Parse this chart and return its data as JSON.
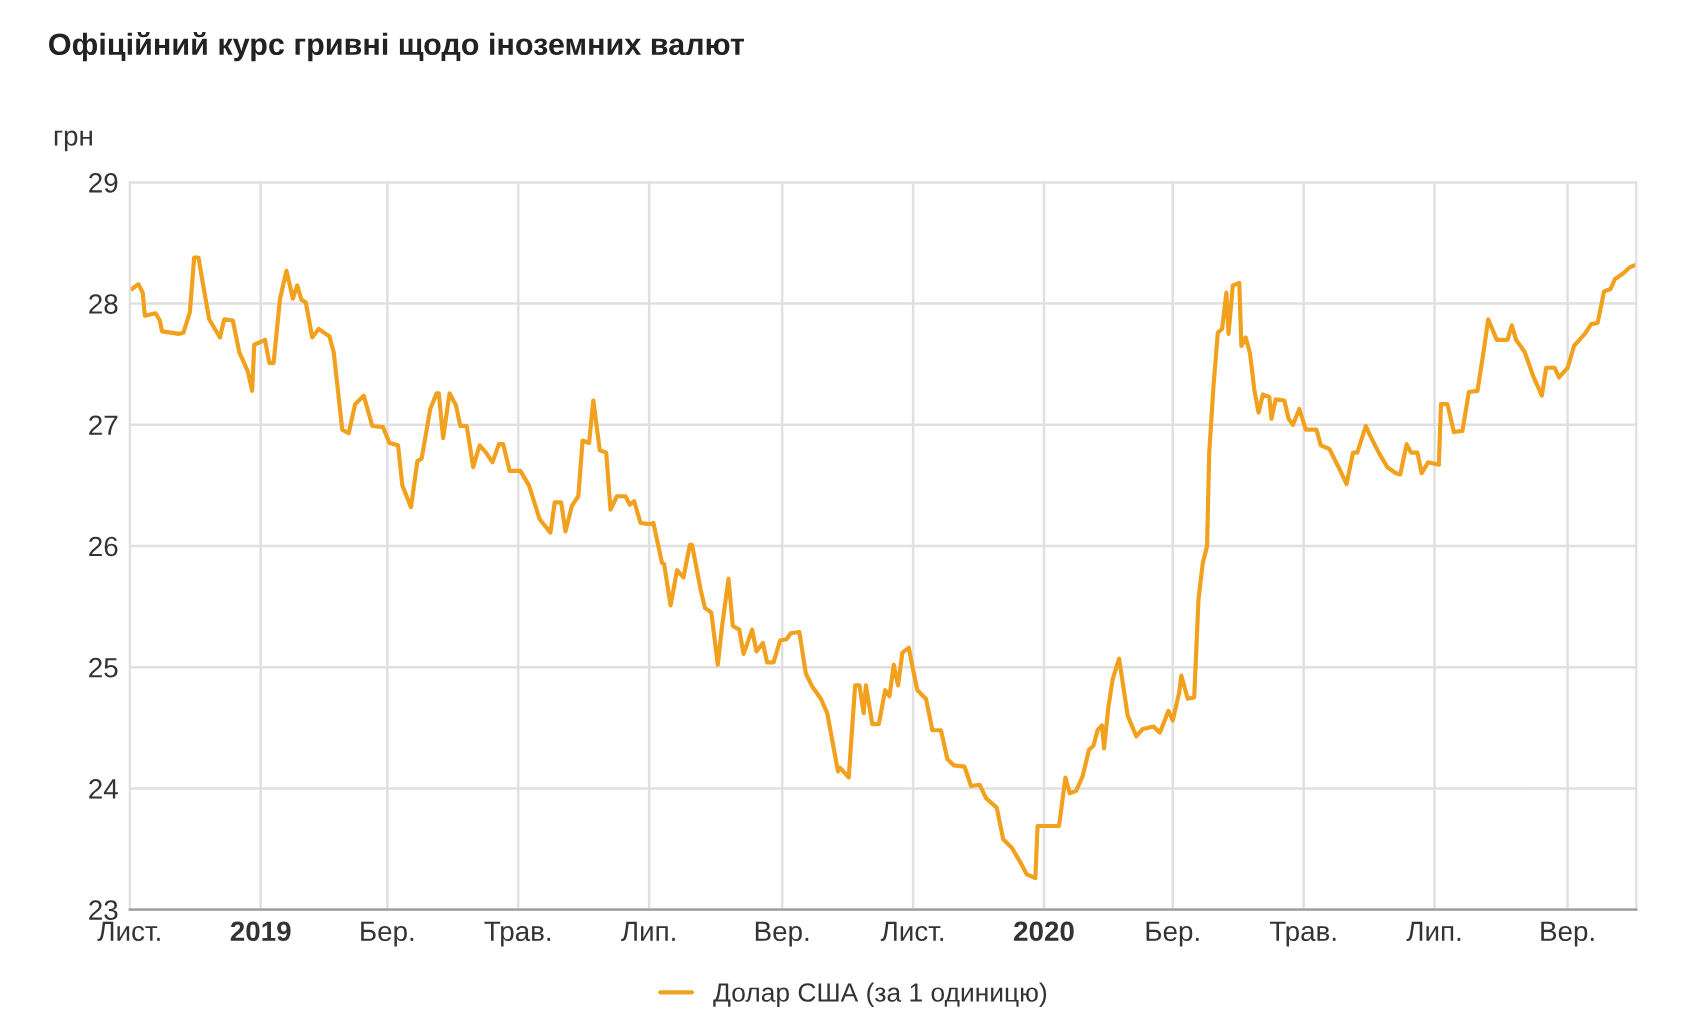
{
  "chart_data": {
    "type": "line",
    "title": "Офіційний курс гривні щодо іноземних валют",
    "ylabel": "грн",
    "xlim": [
      "2018-11-01",
      "2020-10-03"
    ],
    "xticks": [
      {
        "value": "2018-11-01",
        "label": "Лист."
      },
      {
        "value": "2019-01-01",
        "label": "2019"
      },
      {
        "value": "2019-03-01",
        "label": "Бер."
      },
      {
        "value": "2019-05-01",
        "label": "Трав."
      },
      {
        "value": "2019-07-01",
        "label": "Лип."
      },
      {
        "value": "2019-09-01",
        "label": "Вер."
      },
      {
        "value": "2019-11-01",
        "label": "Лист."
      },
      {
        "value": "2020-01-01",
        "label": "2020"
      },
      {
        "value": "2020-03-01",
        "label": "Бер."
      },
      {
        "value": "2020-05-01",
        "label": "Трав."
      },
      {
        "value": "2020-07-01",
        "label": "Лип."
      },
      {
        "value": "2020-09-01",
        "label": "Вер."
      }
    ],
    "ylim": [
      23,
      29
    ],
    "yticks": [
      23,
      24,
      25,
      26,
      27,
      28,
      29
    ],
    "grid": true,
    "legend": "bottom",
    "marker": "none",
    "line_style": "solid",
    "series": [
      {
        "name": "Долар США (за 1 одиницю)",
        "color": "#f2a11f",
        "x": [
          "2018-11-02",
          "2018-11-05",
          "2018-11-07",
          "2018-11-08",
          "2018-11-13",
          "2018-11-15",
          "2018-11-16",
          "2018-11-24",
          "2018-11-26",
          "2018-11-29",
          "2018-12-01",
          "2018-12-03",
          "2018-12-05",
          "2018-12-08",
          "2018-12-13",
          "2018-12-15",
          "2018-12-19",
          "2018-12-22",
          "2018-12-26",
          "2018-12-28",
          "2018-12-29",
          "2019-01-03",
          "2019-01-05",
          "2019-01-07",
          "2019-01-10",
          "2019-01-13",
          "2019-01-16",
          "2019-01-18",
          "2019-01-20",
          "2019-01-22",
          "2019-01-25",
          "2019-01-28",
          "2019-02-02",
          "2019-02-04",
          "2019-02-08",
          "2019-02-11",
          "2019-02-14",
          "2019-02-18",
          "2019-02-22",
          "2019-02-27",
          "2019-03-02",
          "2019-03-06",
          "2019-03-08",
          "2019-03-12",
          "2019-03-15",
          "2019-03-17",
          "2019-03-21",
          "2019-03-24",
          "2019-03-25",
          "2019-03-27",
          "2019-03-30",
          "2019-04-02",
          "2019-04-04",
          "2019-04-07",
          "2019-04-10",
          "2019-04-13",
          "2019-04-16",
          "2019-04-19",
          "2019-04-22",
          "2019-04-24",
          "2019-04-27",
          "2019-05-02",
          "2019-05-06",
          "2019-05-11",
          "2019-05-16",
          "2019-05-18",
          "2019-05-21",
          "2019-05-23",
          "2019-05-26",
          "2019-05-29",
          "2019-05-31",
          "2019-06-03",
          "2019-06-05",
          "2019-06-08",
          "2019-06-11",
          "2019-06-13",
          "2019-06-16",
          "2019-06-20",
          "2019-06-22",
          "2019-06-24",
          "2019-06-27",
          "2019-07-01",
          "2019-07-03",
          "2019-07-07",
          "2019-07-08",
          "2019-07-11",
          "2019-07-14",
          "2019-07-17",
          "2019-07-20",
          "2019-07-21",
          "2019-07-25",
          "2019-07-27",
          "2019-07-30",
          "2019-08-02",
          "2019-08-04",
          "2019-08-07",
          "2019-08-09",
          "2019-08-12",
          "2019-08-14",
          "2019-08-18",
          "2019-08-20",
          "2019-08-23",
          "2019-08-25",
          "2019-08-28",
          "2019-08-31",
          "2019-09-03",
          "2019-09-05",
          "2019-09-09",
          "2019-09-12",
          "2019-09-15",
          "2019-09-19",
          "2019-09-22",
          "2019-09-24",
          "2019-09-27",
          "2019-09-28",
          "2019-10-02",
          "2019-10-05",
          "2019-10-07",
          "2019-10-09",
          "2019-10-10",
          "2019-10-13",
          "2019-10-16",
          "2019-10-19",
          "2019-10-21",
          "2019-10-23",
          "2019-10-25",
          "2019-10-27",
          "2019-10-30",
          "2019-11-01",
          "2019-11-03",
          "2019-11-07",
          "2019-11-10",
          "2019-11-14",
          "2019-11-17",
          "2019-11-20",
          "2019-11-25",
          "2019-11-28",
          "2019-12-02",
          "2019-12-05",
          "2019-12-10",
          "2019-12-13",
          "2019-12-17",
          "2019-12-21",
          "2019-12-24",
          "2019-12-28",
          "2019-12-29",
          "2020-01-08",
          "2020-01-11",
          "2020-01-13",
          "2020-01-16",
          "2020-01-19",
          "2020-01-22",
          "2020-01-24",
          "2020-01-26",
          "2020-01-28",
          "2020-01-29",
          "2020-01-31",
          "2020-02-02",
          "2020-02-05",
          "2020-02-09",
          "2020-02-13",
          "2020-02-16",
          "2020-02-21",
          "2020-02-24",
          "2020-02-28",
          "2020-03-01",
          "2020-03-04",
          "2020-03-05",
          "2020-03-08",
          "2020-03-11",
          "2020-03-13",
          "2020-03-15",
          "2020-03-17",
          "2020-03-18",
          "2020-03-20",
          "2020-03-22",
          "2020-03-24",
          "2020-03-26",
          "2020-03-27",
          "2020-03-29",
          "2020-04-01",
          "2020-04-02",
          "2020-04-04",
          "2020-04-06",
          "2020-04-08",
          "2020-04-10",
          "2020-04-12",
          "2020-04-15",
          "2020-04-16",
          "2020-04-18",
          "2020-04-22",
          "2020-04-24",
          "2020-04-26",
          "2020-04-29",
          "2020-05-02",
          "2020-05-07",
          "2020-05-09",
          "2020-05-13",
          "2020-05-17",
          "2020-05-21",
          "2020-05-24",
          "2020-05-26",
          "2020-05-30",
          "2020-06-01",
          "2020-06-05",
          "2020-06-09",
          "2020-06-13",
          "2020-06-15",
          "2020-06-18",
          "2020-06-20",
          "2020-06-23",
          "2020-06-25",
          "2020-06-28",
          "2020-07-03",
          "2020-07-04",
          "2020-07-07",
          "2020-07-10",
          "2020-07-14",
          "2020-07-17",
          "2020-07-21",
          "2020-07-24",
          "2020-07-26",
          "2020-07-30",
          "2020-08-04",
          "2020-08-06",
          "2020-08-08",
          "2020-08-12",
          "2020-08-16",
          "2020-08-20",
          "2020-08-22",
          "2020-08-26",
          "2020-08-28",
          "2020-09-01",
          "2020-09-04",
          "2020-09-09",
          "2020-09-12",
          "2020-09-15",
          "2020-09-18",
          "2020-09-21",
          "2020-09-23",
          "2020-09-27",
          "2020-09-30",
          "2020-10-03"
        ],
        "values": [
          28.12,
          28.16,
          28.09,
          27.9,
          27.92,
          27.86,
          27.77,
          27.75,
          27.76,
          27.93,
          28.38,
          28.38,
          28.17,
          27.87,
          27.72,
          27.87,
          27.86,
          27.6,
          27.44,
          27.28,
          27.66,
          27.7,
          27.51,
          27.51,
          28.04,
          28.27,
          28.04,
          28.15,
          28.03,
          28.01,
          27.72,
          27.79,
          27.73,
          27.6,
          26.96,
          26.93,
          27.17,
          27.24,
          26.99,
          26.98,
          26.85,
          26.83,
          26.5,
          26.32,
          26.7,
          26.72,
          27.13,
          27.26,
          27.26,
          26.89,
          27.26,
          27.16,
          26.99,
          26.99,
          26.65,
          26.83,
          26.77,
          26.69,
          26.84,
          26.84,
          26.62,
          26.62,
          26.5,
          26.22,
          26.11,
          26.36,
          26.36,
          26.12,
          26.33,
          26.41,
          26.87,
          26.85,
          27.2,
          26.79,
          26.77,
          26.3,
          26.41,
          26.41,
          26.34,
          26.37,
          26.19,
          26.18,
          26.19,
          25.86,
          25.85,
          25.51,
          25.8,
          25.74,
          26.01,
          26.01,
          25.64,
          25.49,
          25.45,
          25.02,
          25.34,
          25.73,
          25.34,
          25.31,
          25.11,
          25.31,
          25.13,
          25.2,
          25.04,
          25.04,
          25.22,
          25.23,
          25.28,
          25.29,
          24.95,
          24.84,
          24.74,
          24.62,
          24.43,
          24.14,
          24.17,
          24.09,
          24.85,
          24.85,
          24.62,
          24.85,
          24.53,
          24.53,
          24.81,
          24.76,
          25.02,
          24.85,
          25.12,
          25.16,
          24.98,
          24.81,
          24.74,
          24.48,
          24.48,
          24.24,
          24.19,
          24.18,
          24.02,
          24.03,
          23.92,
          23.84,
          23.58,
          23.51,
          23.39,
          23.29,
          23.26,
          23.69,
          23.69,
          24.09,
          23.96,
          23.98,
          24.1,
          24.32,
          24.35,
          24.48,
          24.52,
          24.33,
          24.67,
          24.9,
          25.07,
          24.6,
          24.43,
          24.49,
          24.51,
          24.46,
          24.64,
          24.56,
          24.79,
          24.93,
          24.74,
          24.75,
          25.56,
          25.86,
          26.0,
          26.77,
          27.32,
          27.76,
          27.79,
          28.09,
          27.75,
          28.15,
          28.17,
          27.65,
          27.72,
          27.59,
          27.29,
          27.1,
          27.25,
          27.23,
          27.05,
          27.21,
          27.2,
          27.05,
          27.0,
          27.13,
          26.96,
          26.96,
          26.83,
          26.8,
          26.66,
          26.51,
          26.77,
          26.77,
          26.99,
          26.91,
          26.77,
          26.65,
          26.6,
          26.59,
          26.84,
          26.77,
          26.77,
          26.6,
          26.69,
          26.67,
          27.17,
          27.17,
          26.94,
          26.95,
          27.27,
          27.28,
          27.62,
          27.87,
          27.7,
          27.7,
          27.82,
          27.7,
          27.6,
          27.4,
          27.24,
          27.47,
          27.47,
          27.39,
          27.47,
          27.65,
          27.75,
          27.83,
          27.84,
          28.1,
          28.12,
          28.2,
          28.25,
          28.3,
          28.32
        ]
      }
    ]
  }
}
